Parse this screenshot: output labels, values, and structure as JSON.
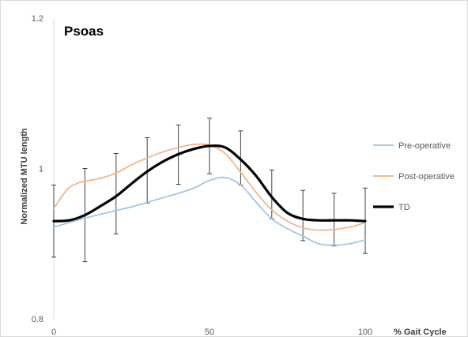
{
  "chart_data": {
    "type": "line",
    "title": "Psoas",
    "xlabel": "% Gait Cycle",
    "ylabel": "Normalized MTU length",
    "xlim": [
      0,
      100
    ],
    "ylim": [
      0.8,
      1.2
    ],
    "x_ticks": [
      "0",
      "50",
      "100"
    ],
    "y_ticks": [
      "1.2",
      "1",
      "0.8"
    ],
    "x_tick_values": [
      0,
      50,
      100
    ],
    "y_tick_values": [
      1.2,
      1.0,
      0.8
    ],
    "grid": false,
    "legend_position": "right",
    "series": [
      {
        "name": "Pre-operative",
        "color": "#9dc3e6",
        "width": "thin",
        "x": [
          0,
          5,
          10,
          15,
          20,
          25,
          30,
          35,
          40,
          45,
          50,
          55,
          60,
          65,
          70,
          75,
          80,
          85,
          90,
          95,
          100
        ],
        "values": [
          0.922,
          0.928,
          0.934,
          0.939,
          0.944,
          0.949,
          0.955,
          0.961,
          0.967,
          0.974,
          0.984,
          0.988,
          0.978,
          0.955,
          0.933,
          0.92,
          0.91,
          0.9,
          0.898,
          0.9,
          0.905
        ]
      },
      {
        "name": "Post-operative",
        "color": "#f4b183",
        "width": "thin",
        "x": [
          0,
          3,
          5,
          8,
          10,
          15,
          20,
          25,
          30,
          35,
          40,
          45,
          50,
          55,
          60,
          65,
          70,
          75,
          80,
          85,
          90,
          95,
          100
        ],
        "values": [
          0.947,
          0.965,
          0.975,
          0.981,
          0.983,
          0.987,
          0.994,
          1.005,
          1.014,
          1.022,
          1.028,
          1.032,
          1.031,
          1.02,
          0.995,
          0.968,
          0.945,
          0.93,
          0.921,
          0.918,
          0.919,
          0.922,
          0.928
        ]
      },
      {
        "name": "TD",
        "color": "#000000",
        "width": "thick",
        "x": [
          0,
          5,
          10,
          15,
          20,
          25,
          30,
          35,
          40,
          45,
          50,
          55,
          60,
          65,
          70,
          75,
          80,
          85,
          90,
          95,
          100
        ],
        "values": [
          0.93,
          0.931,
          0.938,
          0.95,
          0.963,
          0.98,
          0.996,
          1.009,
          1.019,
          1.026,
          1.03,
          1.028,
          1.012,
          0.99,
          0.962,
          0.941,
          0.933,
          0.931,
          0.931,
          0.931,
          0.93
        ],
        "error_bars": {
          "x": [
            0,
            10,
            20,
            30,
            40,
            50,
            60,
            70,
            80,
            90,
            100
          ],
          "upper": [
            0.978,
            1.0,
            1.02,
            1.041,
            1.058,
            1.067,
            1.05,
            0.998,
            0.971,
            0.967,
            0.974
          ],
          "lower": [
            0.882,
            0.876,
            0.913,
            0.954,
            0.979,
            0.993,
            0.978,
            0.933,
            0.904,
            0.897,
            0.887
          ]
        }
      }
    ]
  }
}
